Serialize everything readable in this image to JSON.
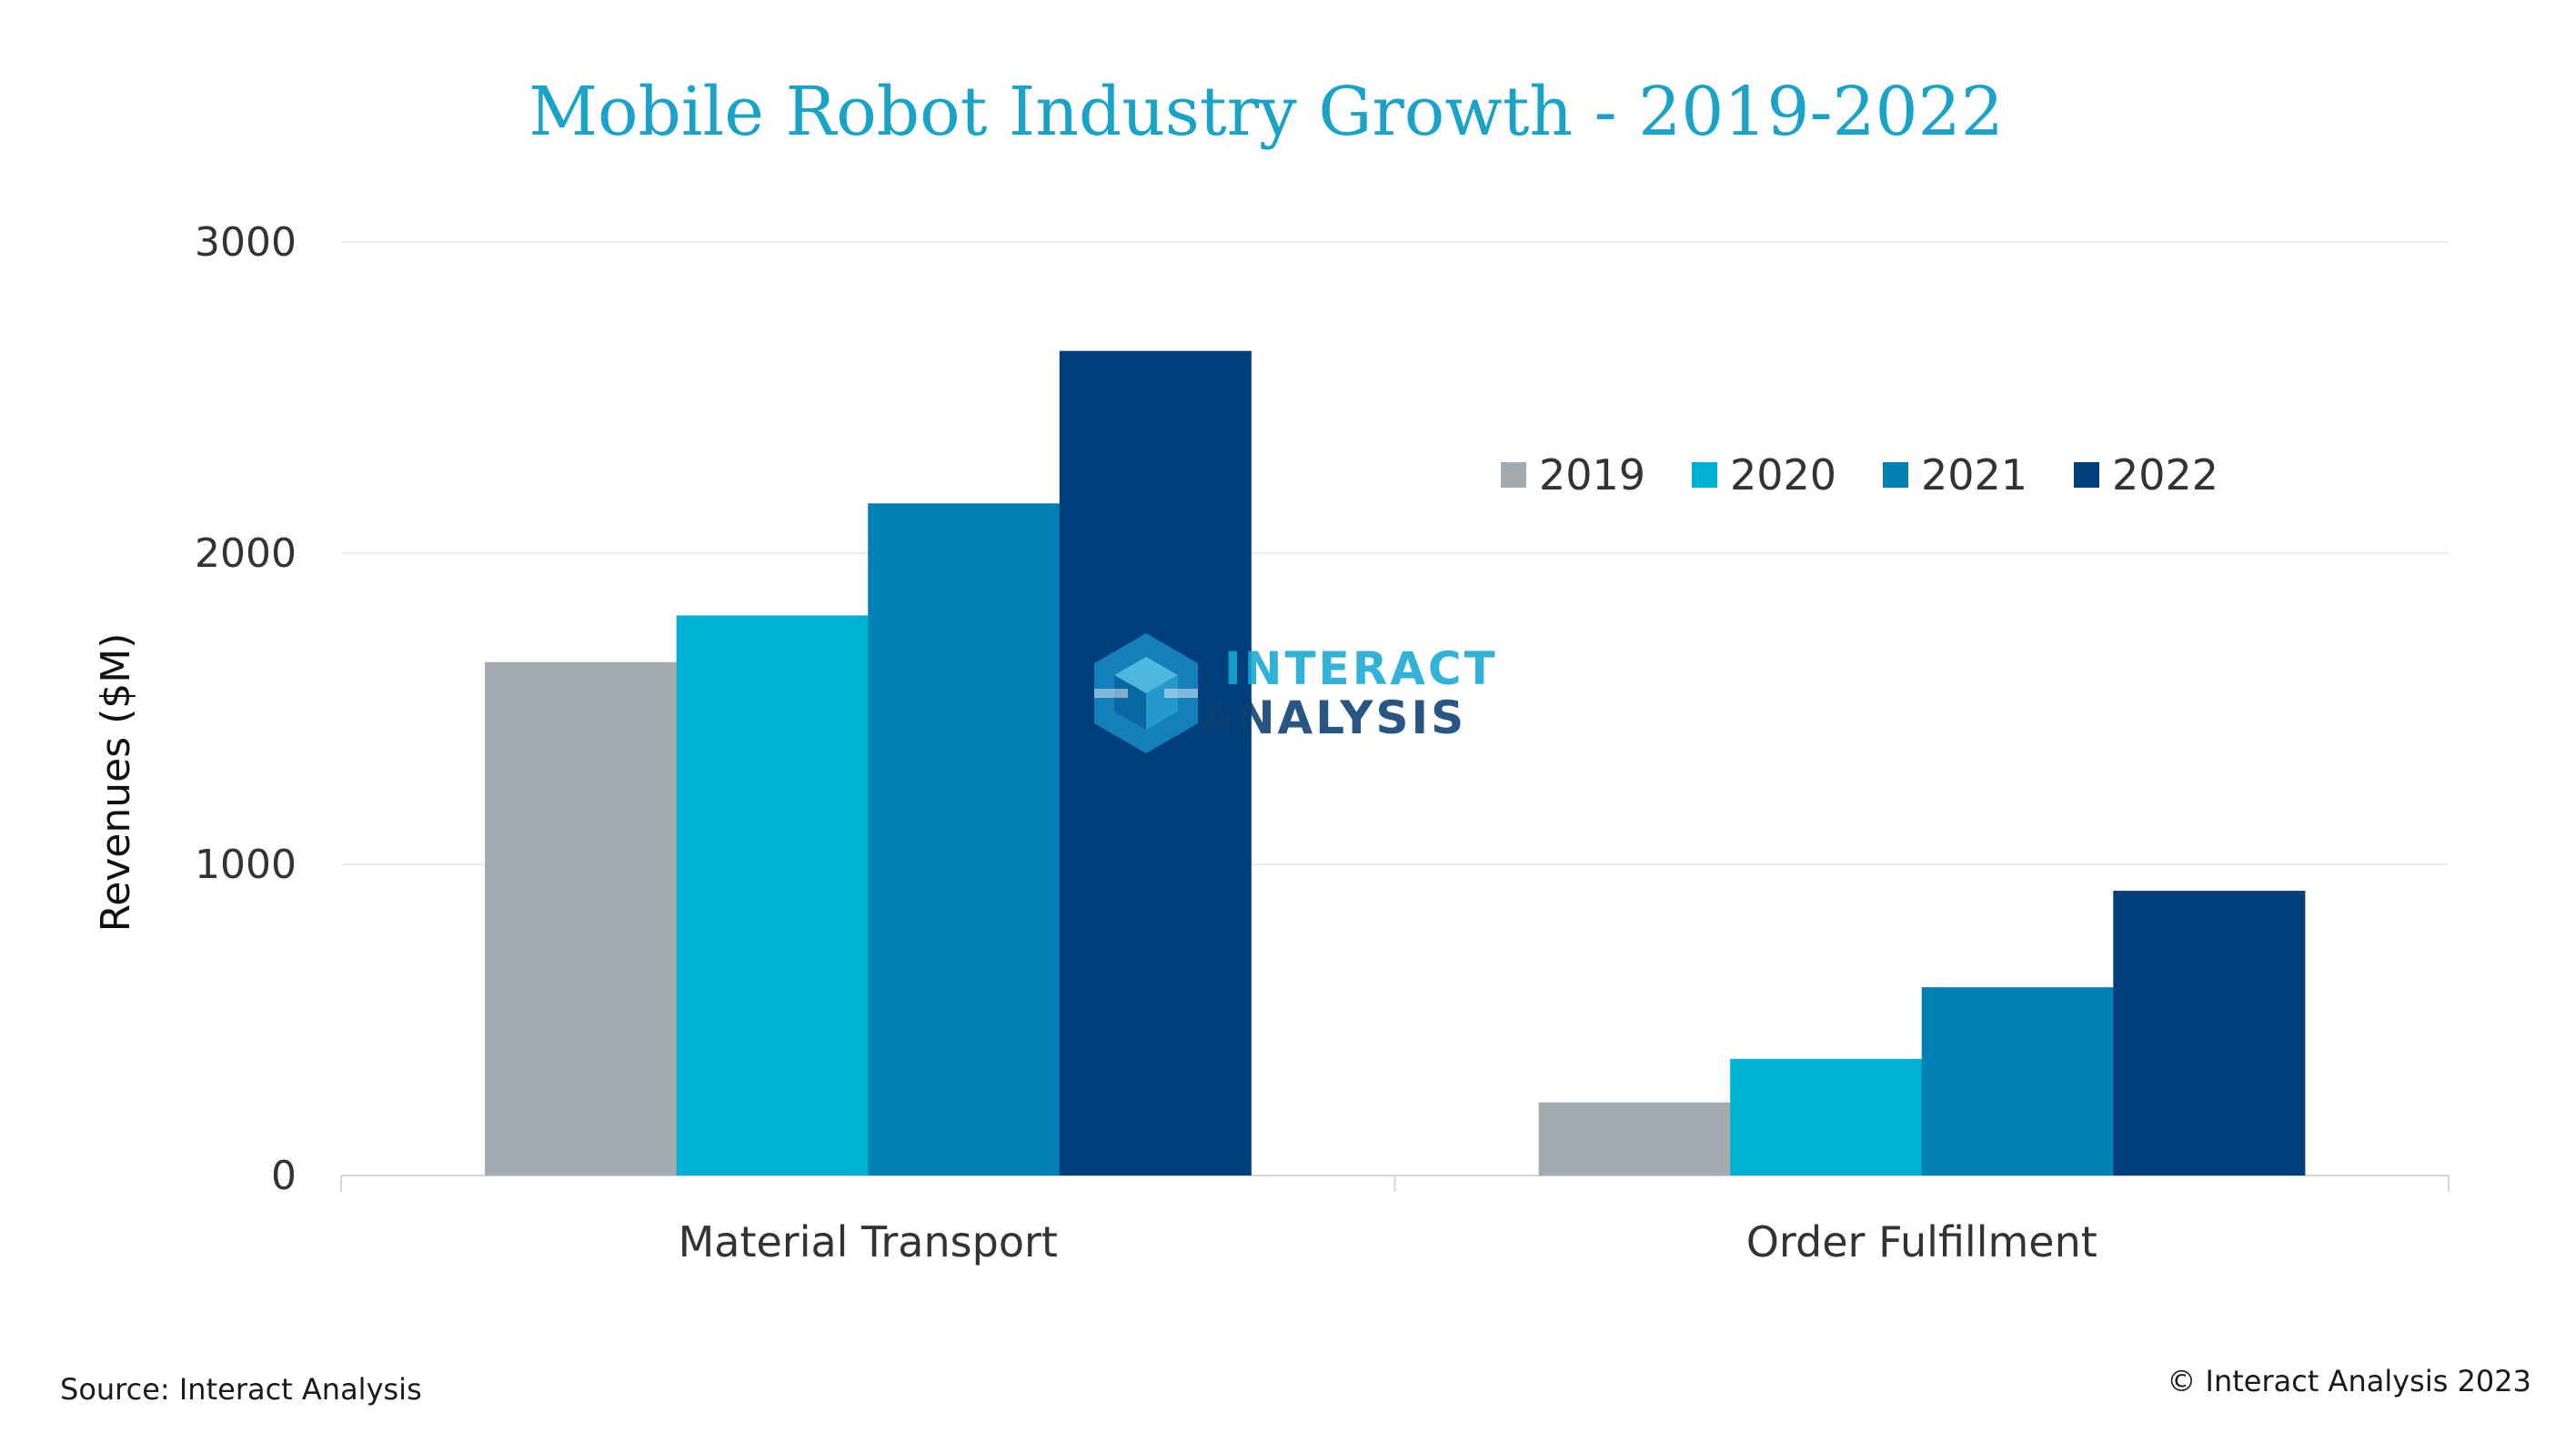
{
  "chart_data": {
    "type": "bar",
    "title": "Mobile Robot Industry Growth - 2019-2022",
    "ylabel": "Revenues ($M)",
    "xlabel": "",
    "categories": [
      "Material Transport",
      "Order Fulfillment"
    ],
    "series": [
      {
        "name": "2019",
        "values": [
          1650,
          235
        ],
        "color": "#a3abb0"
      },
      {
        "name": "2020",
        "values": [
          1800,
          375
        ],
        "color": "#00b0d4"
      },
      {
        "name": "2021",
        "values": [
          2160,
          605
        ],
        "color": "#0080b5"
      },
      {
        "name": "2022",
        "values": [
          2650,
          915
        ],
        "color": "#003f7c"
      }
    ],
    "ylim": [
      0,
      3000
    ],
    "yticks": [
      "0",
      "1000",
      "2000",
      "3000"
    ],
    "grid": true,
    "legend_position": "top-right",
    "title_color": "#1aa3c8"
  },
  "watermark": {
    "line1": "INTERACT",
    "line2": "ANALYSIS",
    "icon": "interact-analysis-logo-icon"
  },
  "footer": {
    "source": "Source: Interact Analysis",
    "copyright": "© Interact Analysis 2023"
  }
}
